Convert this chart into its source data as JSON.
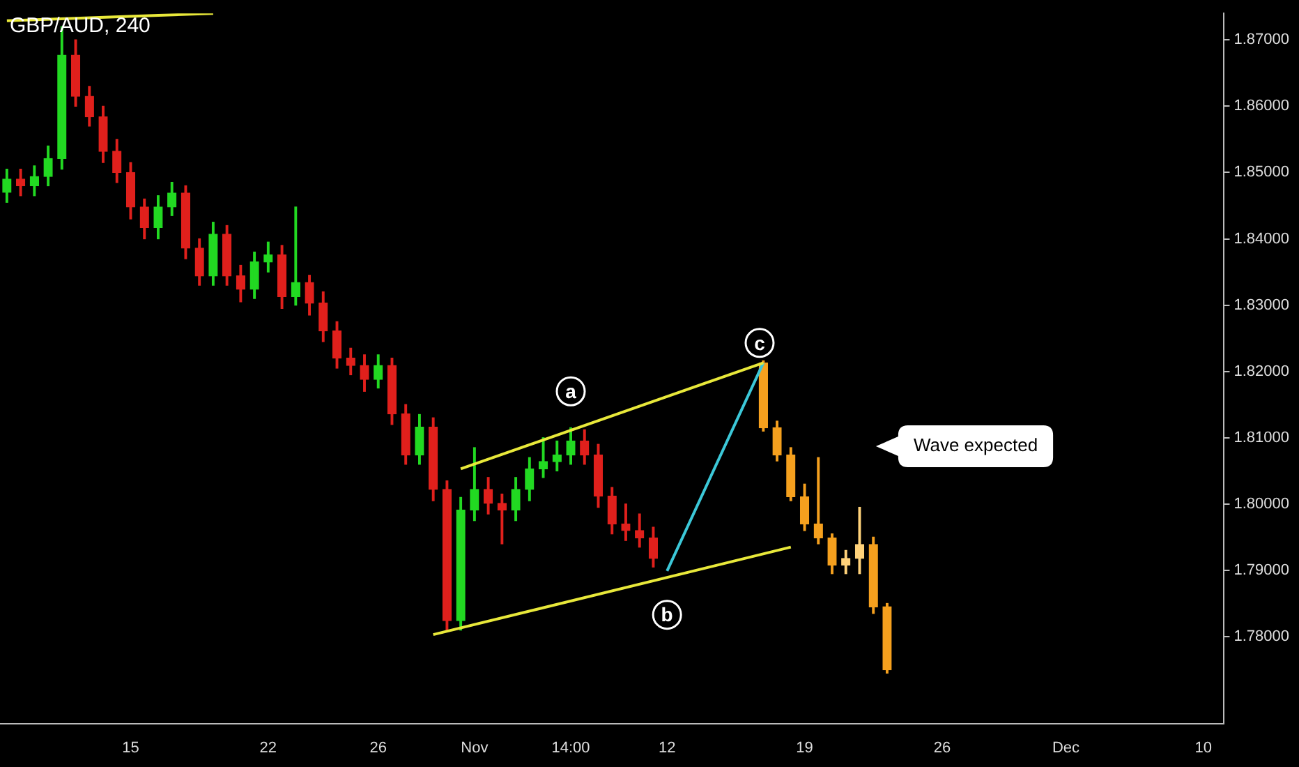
{
  "chart_data": {
    "type": "candlestick",
    "title": "GBP/AUD, 240",
    "categories": [
      null,
      null,
      null,
      null,
      null,
      null,
      null,
      null,
      null,
      "15",
      null,
      null,
      null,
      null,
      null,
      null,
      null,
      null,
      null,
      "22",
      null,
      null,
      null,
      null,
      null,
      null,
      null,
      "26",
      null,
      null,
      null,
      null,
      null,
      null,
      "Nov",
      null,
      null,
      null,
      null,
      null,
      null,
      "14:00",
      null,
      null,
      null,
      null,
      null,
      null,
      "12",
      null,
      null,
      null,
      null,
      null,
      null,
      null,
      null,
      null,
      "19",
      null,
      null,
      null,
      null,
      null,
      null,
      null,
      null,
      null,
      "26",
      null,
      null,
      null,
      null,
      null,
      null,
      null,
      null,
      "Dec",
      null,
      null,
      null,
      null,
      null,
      null,
      null,
      null,
      null,
      "10",
      null
    ],
    "ylim": [
      1.7669,
      1.874
    ],
    "yticks": [
      {
        "value": 1.78,
        "label": "1.78000"
      },
      {
        "value": 1.79,
        "label": "1.79000"
      },
      {
        "value": 1.8,
        "label": "1.80000"
      },
      {
        "value": 1.81,
        "label": "1.81000"
      },
      {
        "value": 1.82,
        "label": "1.82000"
      },
      {
        "value": 1.83,
        "label": "1.83000"
      },
      {
        "value": 1.84,
        "label": "1.84000"
      },
      {
        "value": 1.85,
        "label": "1.85000"
      },
      {
        "value": 1.86,
        "label": "1.86000"
      },
      {
        "value": 1.87,
        "label": "1.87000"
      }
    ],
    "grid": false,
    "legend": false,
    "series": [
      {
        "ohlc": [
          [
            1.847,
            1.8505,
            1.8455,
            1.849
          ],
          [
            1.849,
            1.8505,
            1.8465,
            1.848
          ],
          [
            1.848,
            1.851,
            1.8465,
            1.8494
          ],
          [
            1.8494,
            1.854,
            1.848,
            1.8521
          ],
          [
            1.8521,
            1.872,
            1.8505,
            1.8677
          ],
          [
            1.8677,
            1.87,
            1.86,
            1.8615
          ],
          [
            1.8615,
            1.863,
            1.857,
            1.8584
          ],
          [
            1.8584,
            1.86,
            1.8515,
            1.8532
          ],
          [
            1.8532,
            1.855,
            1.8485,
            1.85
          ],
          [
            1.85,
            1.8515,
            1.843,
            1.8448
          ],
          [
            1.8448,
            1.846,
            1.84,
            1.8417
          ],
          [
            1.8417,
            1.8465,
            1.84,
            1.8448
          ],
          [
            1.8448,
            1.8485,
            1.8435,
            1.8469
          ],
          [
            1.8469,
            1.848,
            1.837,
            1.8386
          ],
          [
            1.8386,
            1.84,
            1.833,
            1.8344
          ],
          [
            1.8344,
            1.8425,
            1.833,
            1.8407
          ],
          [
            1.8407,
            1.842,
            1.833,
            1.8344
          ],
          [
            1.8344,
            1.836,
            1.8305,
            1.8324
          ],
          [
            1.8324,
            1.838,
            1.831,
            1.8365
          ],
          [
            1.8365,
            1.8395,
            1.835,
            1.8376
          ],
          [
            1.8376,
            1.839,
            1.8295,
            1.8313
          ],
          [
            1.8313,
            1.8448,
            1.83,
            1.8334
          ],
          [
            1.8334,
            1.8345,
            1.8285,
            1.8303
          ],
          [
            1.8303,
            1.832,
            1.8245,
            1.8261
          ],
          [
            1.8261,
            1.8275,
            1.8205,
            1.822
          ],
          [
            1.822,
            1.8235,
            1.8195,
            1.8209
          ],
          [
            1.8209,
            1.8225,
            1.817,
            1.8188
          ],
          [
            1.8188,
            1.8225,
            1.8175,
            1.8209
          ],
          [
            1.8209,
            1.822,
            1.812,
            1.8136
          ],
          [
            1.8136,
            1.815,
            1.806,
            1.8074
          ],
          [
            1.8074,
            1.8135,
            1.806,
            1.8116
          ],
          [
            1.8116,
            1.813,
            1.8005,
            1.8022
          ],
          [
            1.8022,
            1.8035,
            1.7808,
            1.7824
          ],
          [
            1.7824,
            1.801,
            1.781,
            1.7991
          ],
          [
            1.7991,
            1.8085,
            1.7975,
            1.8022
          ],
          [
            1.8022,
            1.804,
            1.7985,
            1.8001
          ],
          [
            1.8001,
            1.8015,
            1.794,
            1.7991
          ],
          [
            1.7991,
            1.804,
            1.7975,
            1.8022
          ],
          [
            1.8022,
            1.807,
            1.8005,
            1.8053
          ],
          [
            1.8053,
            1.81,
            1.804,
            1.8064
          ],
          [
            1.8064,
            1.8095,
            1.805,
            1.8074
          ],
          [
            1.8074,
            1.8115,
            1.806,
            1.8095
          ],
          [
            1.8095,
            1.8112,
            1.806,
            1.8074
          ],
          [
            1.8074,
            1.809,
            1.7995,
            1.8012
          ],
          [
            1.8012,
            1.8025,
            1.7955,
            1.797
          ],
          [
            1.797,
            1.8,
            1.7945,
            1.796
          ],
          [
            1.796,
            1.7985,
            1.7935,
            1.7949
          ],
          [
            1.7949,
            1.7965,
            1.7905,
            1.7918
          ],
          null,
          null,
          null,
          null,
          null,
          null,
          null,
          null,
          null,
          null,
          null,
          null,
          null,
          null,
          null,
          null,
          null,
          null,
          null,
          null,
          null,
          null,
          null,
          null,
          null,
          null,
          null,
          null,
          null,
          null,
          null,
          null,
          null,
          null,
          null,
          null,
          null,
          null,
          null,
          null,
          null
        ],
        "colors": [
          "#22d922",
          "#e0201c",
          "#22d922",
          "#22d922",
          "#22d922",
          "#e0201c",
          "#e0201c",
          "#e0201c",
          "#e0201c",
          "#e0201c",
          "#e0201c",
          "#22d922",
          "#22d922",
          "#e0201c",
          "#e0201c",
          "#22d922",
          "#e0201c",
          "#e0201c",
          "#22d922",
          "#22d922",
          "#e0201c",
          "#22d922",
          "#e0201c",
          "#e0201c",
          "#e0201c",
          "#e0201c",
          "#e0201c",
          "#22d922",
          "#e0201c",
          "#e0201c",
          "#22d922",
          "#e0201c",
          "#e0201c",
          "#22d922",
          "#22d922",
          "#e0201c",
          "#e0201c",
          "#22d922",
          "#22d922",
          "#22d922",
          "#22d922",
          "#22d922",
          "#e0201c",
          "#e0201c",
          "#e0201c",
          "#e0201c",
          "#e0201c",
          "#e0201c",
          null,
          null,
          null,
          null,
          null,
          null,
          null,
          null,
          null,
          null,
          null,
          null,
          null,
          null,
          null,
          null,
          null,
          null,
          null,
          null,
          null,
          null,
          null,
          null,
          null,
          null,
          null,
          null,
          null,
          null,
          null,
          null,
          null,
          null,
          null,
          null,
          null,
          null,
          null,
          null,
          null
        ]
      },
      {
        "colors": [
          null,
          null,
          null,
          null,
          null,
          null,
          null,
          null,
          null,
          null,
          null,
          null,
          null,
          null,
          null,
          null,
          null,
          null,
          null,
          null,
          null,
          null,
          null,
          null,
          null,
          null,
          null,
          null,
          null,
          null,
          null,
          null,
          null,
          null,
          null,
          null,
          null,
          null,
          null,
          null,
          null,
          null,
          null,
          null,
          null,
          null,
          null,
          null,
          null,
          null,
          null,
          null,
          null,
          null,
          null,
          "#f5a01e",
          "#f5a01e",
          "#f5a01e",
          "#f5a01e",
          "#f5a01e",
          "#f5a01e",
          "#ffd27a",
          "#ffd27a",
          "#f5a01e",
          "#f5a01e",
          null,
          null,
          null,
          null,
          null,
          null,
          null,
          null,
          null,
          null,
          null,
          null,
          null,
          null,
          null,
          null,
          null,
          null,
          null,
          null,
          null,
          null,
          null,
          null
        ],
        "ohlc": [
          null,
          null,
          null,
          null,
          null,
          null,
          null,
          null,
          null,
          null,
          null,
          null,
          null,
          null,
          null,
          null,
          null,
          null,
          null,
          null,
          null,
          null,
          null,
          null,
          null,
          null,
          null,
          null,
          null,
          null,
          null,
          null,
          null,
          null,
          null,
          null,
          null,
          null,
          null,
          null,
          null,
          null,
          null,
          null,
          null,
          null,
          null,
          null,
          null,
          null,
          null,
          null,
          null,
          null,
          null,
          [
            1.8213,
            1.8216,
            1.811,
            1.8115
          ],
          [
            1.8115,
            1.8125,
            1.8065,
            1.8074
          ],
          [
            1.8074,
            1.8085,
            1.8005,
            1.8011
          ],
          [
            1.8011,
            1.803,
            1.796,
            1.797
          ],
          [
            1.797,
            1.807,
            1.794,
            1.7949
          ],
          [
            1.7949,
            1.7955,
            1.7895,
            1.7908
          ],
          [
            1.7908,
            1.793,
            1.7895,
            1.7918
          ],
          [
            1.7918,
            1.7995,
            1.7895,
            1.7939
          ],
          [
            1.7939,
            1.795,
            1.7835,
            1.7845
          ],
          [
            1.7845,
            1.785,
            1.7745,
            1.775
          ],
          null,
          null,
          null,
          null,
          null,
          null,
          null,
          null,
          null,
          null,
          null,
          null,
          null,
          null,
          null,
          null,
          null,
          null,
          null,
          null,
          null,
          null,
          null,
          null
        ]
      },
      {
        "type": "line",
        "color": "#e8e83a",
        "values": [
          1.8729,
          null,
          null,
          null,
          null,
          null,
          null,
          null,
          null,
          null,
          null,
          null,
          null,
          null,
          null,
          1.874,
          null,
          null,
          null,
          null,
          null,
          null,
          null,
          null,
          null,
          null,
          null,
          null,
          null,
          null,
          null,
          null,
          null,
          null,
          null,
          null,
          null,
          null,
          null,
          null,
          null,
          null,
          null,
          null,
          null,
          null,
          null,
          null,
          null,
          null,
          null,
          null,
          null,
          null,
          null,
          null,
          null,
          null,
          null,
          null,
          null,
          null,
          null,
          null,
          null,
          null,
          null,
          null,
          null,
          null,
          null,
          null,
          null,
          null,
          null,
          null,
          null,
          null,
          null,
          null,
          null,
          null,
          null,
          null,
          null,
          null,
          null,
          null,
          null
        ]
      },
      {
        "type": "line",
        "color": "#e8e83a",
        "values": [
          null,
          null,
          null,
          null,
          null,
          null,
          null,
          null,
          null,
          null,
          null,
          null,
          null,
          null,
          null,
          null,
          null,
          null,
          null,
          null,
          null,
          null,
          null,
          null,
          null,
          null,
          null,
          null,
          null,
          null,
          null,
          null,
          null,
          1.8053,
          null,
          null,
          null,
          null,
          null,
          null,
          null,
          null,
          null,
          null,
          null,
          null,
          null,
          null,
          null,
          null,
          null,
          null,
          null,
          null,
          null,
          1.8213,
          null,
          null,
          null,
          null,
          null,
          null,
          null,
          null,
          null,
          null,
          null,
          null,
          null,
          null,
          null,
          null,
          null,
          null,
          null,
          null,
          null,
          null,
          null,
          null,
          null,
          null,
          null,
          null,
          null,
          null,
          null,
          null,
          null
        ]
      },
      {
        "type": "line",
        "color": "#e8e83a",
        "values": [
          null,
          null,
          null,
          null,
          null,
          null,
          null,
          null,
          null,
          null,
          null,
          null,
          null,
          null,
          null,
          null,
          null,
          null,
          null,
          null,
          null,
          null,
          null,
          null,
          null,
          null,
          null,
          null,
          null,
          null,
          null,
          1.7803,
          null,
          null,
          null,
          null,
          null,
          null,
          null,
          null,
          null,
          null,
          null,
          null,
          null,
          null,
          null,
          null,
          null,
          null,
          null,
          null,
          null,
          null,
          null,
          null,
          null,
          1.7935,
          null,
          null,
          null,
          null,
          null,
          null,
          null,
          null,
          null,
          null,
          null,
          null,
          null,
          null,
          null,
          null,
          null,
          null,
          null,
          null,
          null,
          null,
          null,
          null,
          null,
          null,
          null,
          null,
          null,
          null,
          null
        ]
      },
      {
        "type": "line",
        "color": "#3cc8d8",
        "values": [
          null,
          null,
          null,
          null,
          null,
          null,
          null,
          null,
          null,
          null,
          null,
          null,
          null,
          null,
          null,
          null,
          null,
          null,
          null,
          null,
          null,
          null,
          null,
          null,
          null,
          null,
          null,
          null,
          null,
          null,
          null,
          null,
          null,
          null,
          null,
          null,
          null,
          null,
          null,
          null,
          null,
          null,
          null,
          null,
          null,
          null,
          null,
          null,
          1.7899,
          null,
          null,
          null,
          null,
          null,
          null,
          1.8213,
          null,
          null,
          null,
          null,
          null,
          null,
          null,
          null,
          null,
          null,
          null,
          null,
          null,
          null,
          null,
          null,
          null,
          null,
          null,
          null,
          null,
          null,
          null,
          null,
          null,
          null,
          null,
          null,
          null,
          null,
          null,
          null,
          null
        ]
      }
    ],
    "annotations": [
      {
        "text": "a",
        "x": "14:00",
        "y": 1.817
      },
      {
        "text": "b",
        "x": "12",
        "y": 1.7833
      },
      {
        "text": "c",
        "y": 1.8243
      },
      "Wave expected"
    ]
  }
}
